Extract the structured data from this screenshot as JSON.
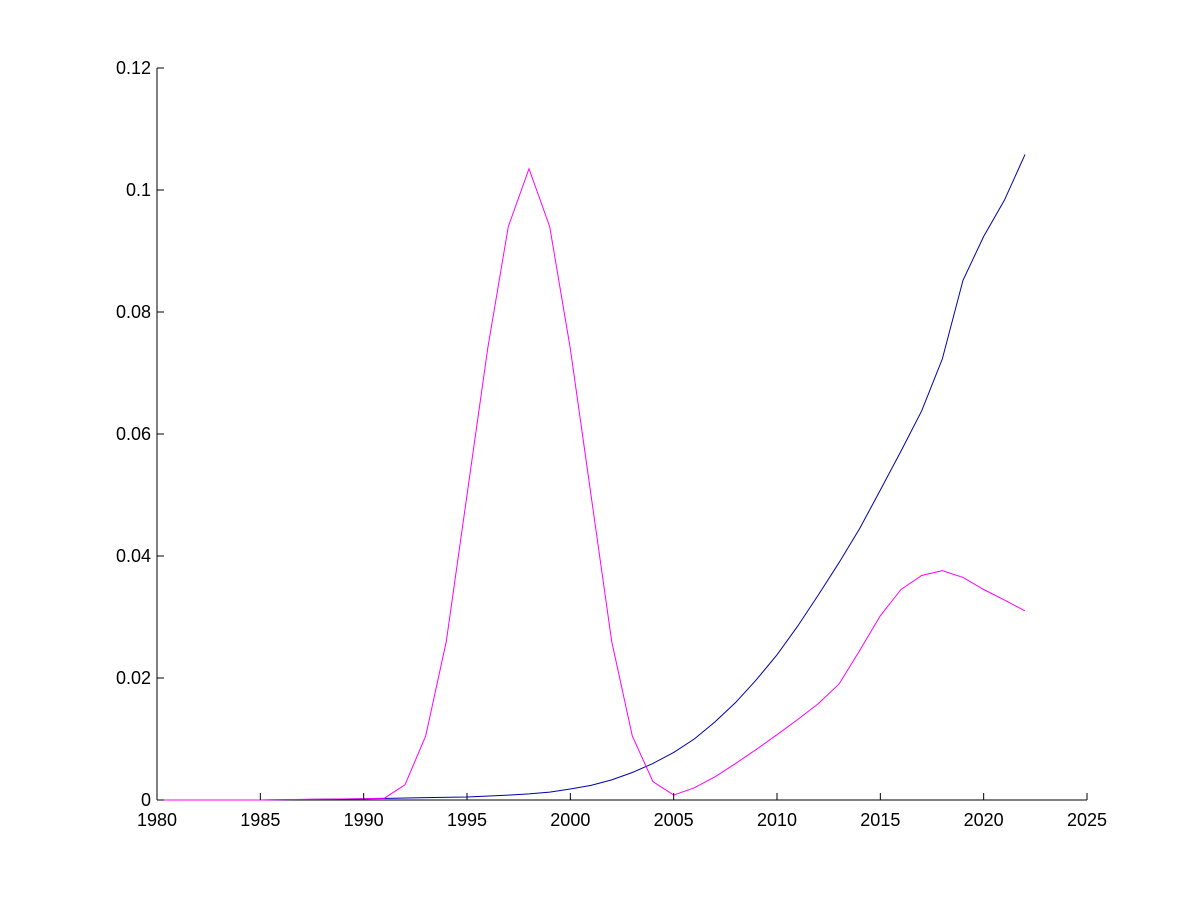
{
  "chart_data": {
    "type": "line",
    "title": "",
    "xlabel": "",
    "ylabel": "",
    "xlim": [
      1980,
      2025
    ],
    "ylim": [
      0,
      0.12
    ],
    "xticks": [
      1980,
      1985,
      1990,
      1995,
      2000,
      2005,
      2010,
      2015,
      2020,
      2025
    ],
    "xtick_labels": [
      "1980",
      "1985",
      "1990",
      "1995",
      "2000",
      "2005",
      "2010",
      "2015",
      "2020",
      "2025"
    ],
    "yticks": [
      0,
      0.02,
      0.04,
      0.06,
      0.08,
      0.1,
      0.12
    ],
    "ytick_labels": [
      "0",
      "0.02",
      "0.04",
      "0.06",
      "0.08",
      "0.1",
      "0.12"
    ],
    "grid": false,
    "legend": "none",
    "series": [
      {
        "color": "#0000aa",
        "x": [
          1980,
          1985,
          1990,
          1993,
          1995,
          1997,
          1998,
          1999,
          2000,
          2001,
          2002,
          2003,
          2004,
          2005,
          2006,
          2007,
          2008,
          2009,
          2010,
          2011,
          2012,
          2013,
          2014,
          2015,
          2016,
          2017,
          2018,
          2019,
          2020,
          2021,
          2022
        ],
        "y": [
          0,
          0,
          0.0002,
          0.0004,
          0.0005,
          0.0008,
          0.001,
          0.0013,
          0.0018,
          0.0024,
          0.0033,
          0.0045,
          0.006,
          0.0078,
          0.01,
          0.0128,
          0.016,
          0.0197,
          0.0238,
          0.0285,
          0.0336,
          0.0389,
          0.0445,
          0.0508,
          0.0572,
          0.0638,
          0.0723,
          0.0852,
          0.0924,
          0.0983,
          0.1058
        ]
      },
      {
        "color": "#ff00ff",
        "x": [
          1980,
          1985,
          1987,
          1990,
          1991,
          1992,
          1993,
          1994,
          1995,
          1996,
          1997,
          1998,
          1999,
          2000,
          2001,
          2002,
          2003,
          2004,
          2005,
          2006,
          2007,
          2008,
          2009,
          2010,
          2011,
          2012,
          2013,
          2014,
          2015,
          2016,
          2017,
          2018,
          2019,
          2020,
          2021,
          2022
        ],
        "y": [
          0,
          0,
          0.0001,
          0.0002,
          0.0003,
          0.0025,
          0.0105,
          0.026,
          0.05,
          0.074,
          0.094,
          0.1035,
          0.094,
          0.074,
          0.05,
          0.026,
          0.0105,
          0.003,
          0.0008,
          0.002,
          0.0038,
          0.006,
          0.0083,
          0.0107,
          0.0132,
          0.0158,
          0.019,
          0.0245,
          0.0302,
          0.0345,
          0.0368,
          0.0376,
          0.0365,
          0.0345,
          0.0328,
          0.031
        ]
      }
    ]
  }
}
